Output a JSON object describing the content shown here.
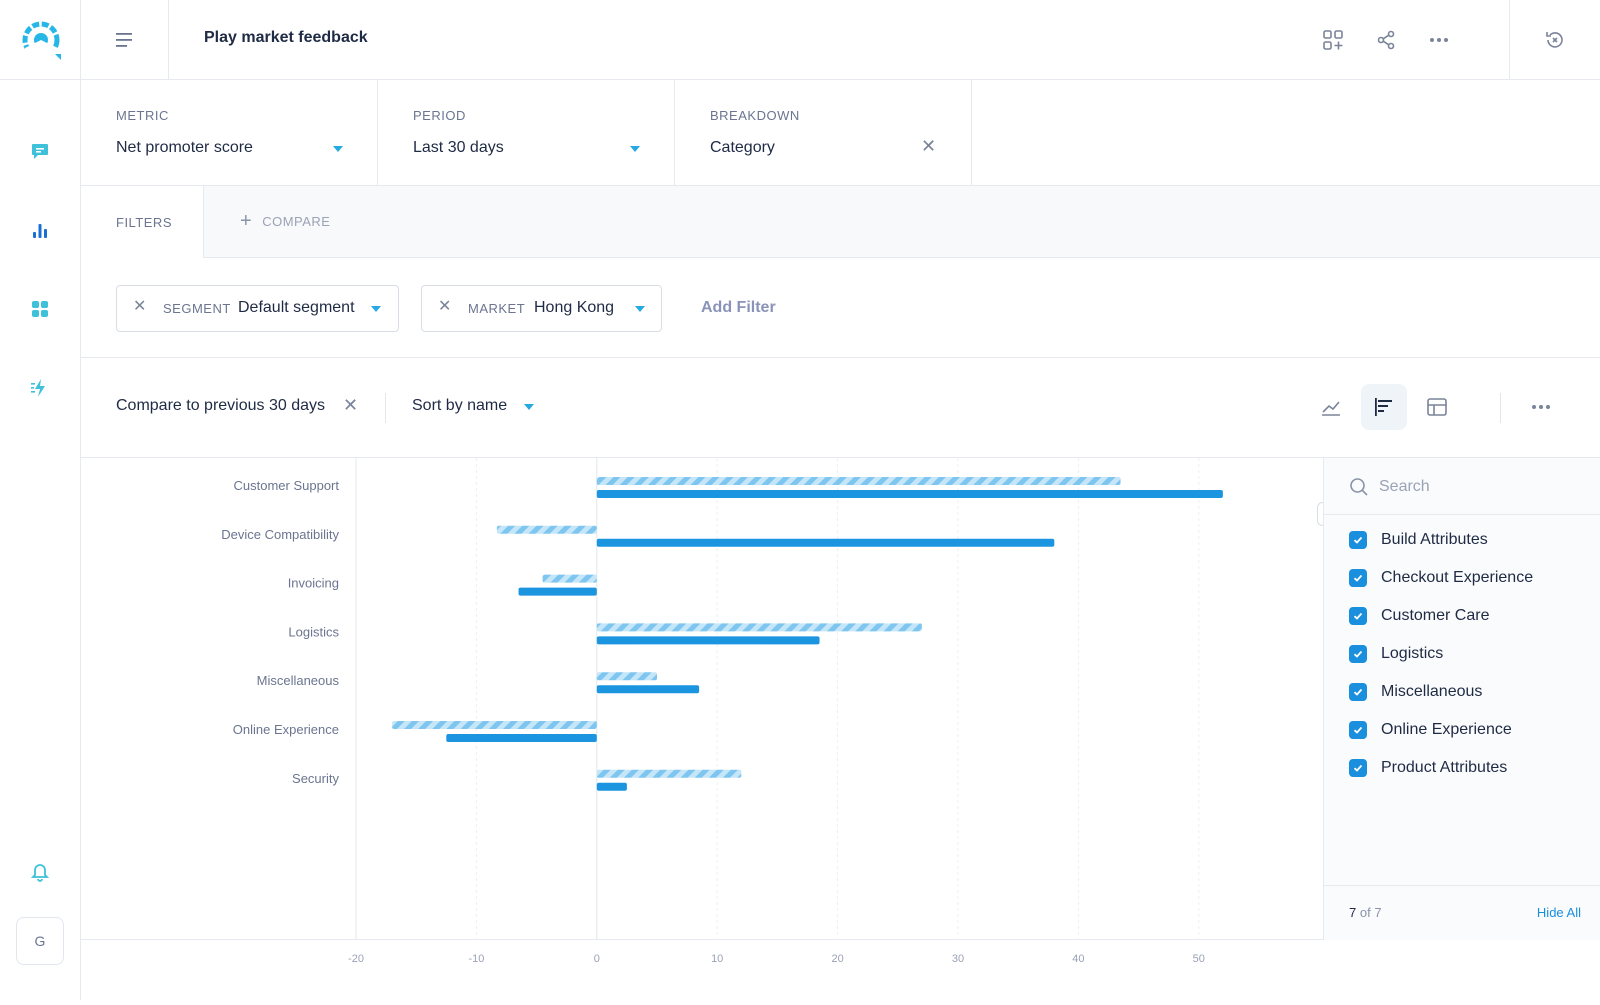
{
  "header": {
    "title": "Play market feedback"
  },
  "selectors": {
    "metric": {
      "label": "METRIC",
      "value": "Net promoter score"
    },
    "period": {
      "label": "PERIOD",
      "value": "Last 30 days"
    },
    "breakdown": {
      "label": "BREAKDOWN",
      "value": "Category"
    }
  },
  "filters": {
    "tab_label": "FILTERS",
    "compare_label": "COMPARE",
    "chips": [
      {
        "key": "SEGMENT",
        "value": "Default segment"
      },
      {
        "key": "MARKET",
        "value": "Hong Kong"
      }
    ],
    "add_filter": "Add Filter"
  },
  "toolbar": {
    "compare_text": "Compare to previous 30 days",
    "sort_text": "Sort by name"
  },
  "legend": {
    "search_placeholder": "Search",
    "items": [
      "Build Attributes",
      "Checkout Experience",
      "Customer Care",
      "Logistics",
      "Miscellaneous",
      "Online Experience",
      "Product Attributes"
    ],
    "count": "7",
    "count_of": "of 7",
    "hide_all": "Hide All"
  },
  "sidebar": {
    "avatar_initial": "G"
  },
  "colors": {
    "accent": "#1a8fdd",
    "bar_current": "#1b95e0",
    "bar_previous": "#8fd0f3",
    "teal_icon": "#3fc1d9"
  },
  "chart_data": {
    "type": "bar",
    "orientation": "horizontal",
    "categories": [
      "Customer Support",
      "Device Compatibility",
      "Invoicing",
      "Logistics",
      "Miscellaneous",
      "Online Experience",
      "Security"
    ],
    "series": [
      {
        "values": [
          43.5,
          -8.3,
          -4.5,
          27,
          5,
          -17,
          12
        ],
        "style": "striped"
      },
      {
        "values": [
          52,
          38,
          -6.5,
          18.5,
          8.5,
          -12.5,
          2.5
        ],
        "style": "solid"
      }
    ],
    "xlim": [
      -20,
      55
    ],
    "xticks": [
      -20,
      -10,
      0,
      10,
      20,
      30,
      40,
      50
    ],
    "grid": true
  }
}
